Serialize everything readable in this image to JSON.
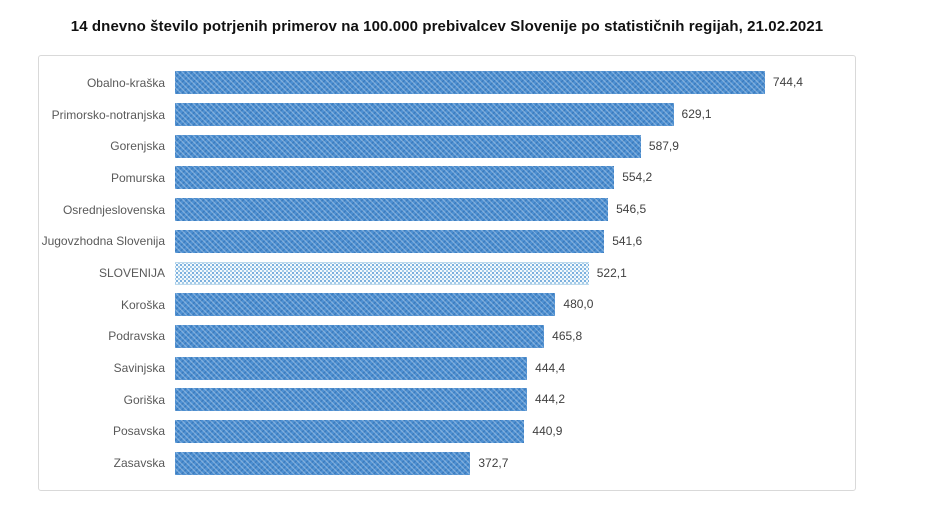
{
  "page": {
    "background": "#ffffff"
  },
  "chart_data": {
    "type": "bar",
    "orientation": "horizontal",
    "title": "14 dnevno število potrjenih primerov na 100.000 prebivalcev Slovenije po statističnih regijah, 21.02.2021",
    "categories": [
      "Obalno-kraška",
      "Primorsko-notranjska",
      "Gorenjska",
      "Pomurska",
      "Osrednjeslovenska",
      "Jugovzhodna Slovenija",
      "SLOVENIJA",
      "Koroška",
      "Podravska",
      "Savinjska",
      "Goriška",
      "Posavska",
      "Zasavska"
    ],
    "values": [
      744.4,
      629.1,
      587.9,
      554.2,
      546.5,
      541.6,
      522.1,
      480.0,
      465.8,
      444.4,
      444.2,
      440.9,
      372.7
    ],
    "value_labels": [
      "744,4",
      "629,1",
      "587,9",
      "554,2",
      "546,5",
      "541,6",
      "522,1",
      "480,0",
      "465,8",
      "444,4",
      "444,2",
      "440,9",
      "372,7"
    ],
    "highlight_index": 6,
    "xlim": [
      0,
      800
    ],
    "grid": false,
    "legend": false,
    "bar_color": "#4e90d2",
    "highlight_bar_color": "#cde4f2",
    "label_color": "#595959",
    "value_color": "#404040"
  }
}
